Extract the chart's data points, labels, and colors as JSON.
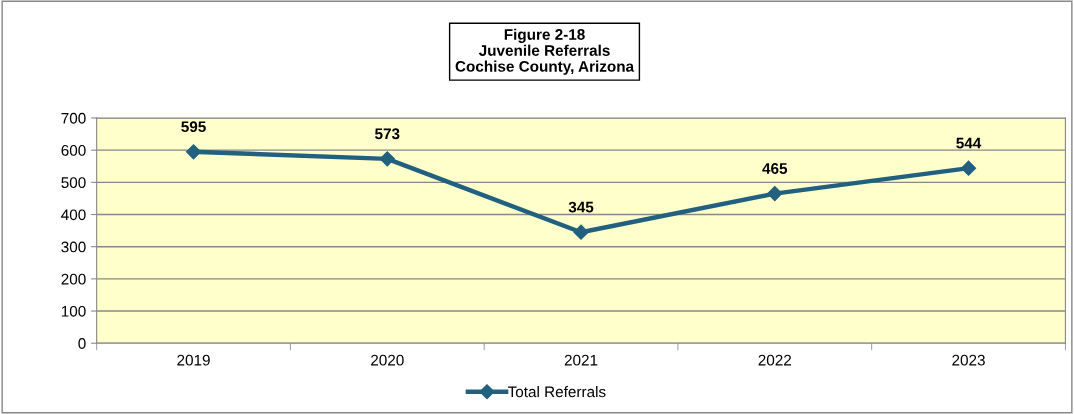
{
  "chart_data": {
    "type": "line",
    "title": "Figure 2-18\nJuvenile Referrals\nCochise County, Arizona",
    "categories": [
      "2019",
      "2020",
      "2021",
      "2022",
      "2023"
    ],
    "series": [
      {
        "name": "Total Referrals",
        "color": "#22607f",
        "values": [
          595,
          573,
          345,
          465,
          544
        ]
      }
    ],
    "ylim": [
      0,
      700
    ],
    "yticks": [
      0,
      100,
      200,
      300,
      400,
      500,
      600,
      700
    ],
    "grid": "y",
    "legend": "bottom",
    "marker": "diamond",
    "line_style": "solid",
    "data_labels": true
  }
}
